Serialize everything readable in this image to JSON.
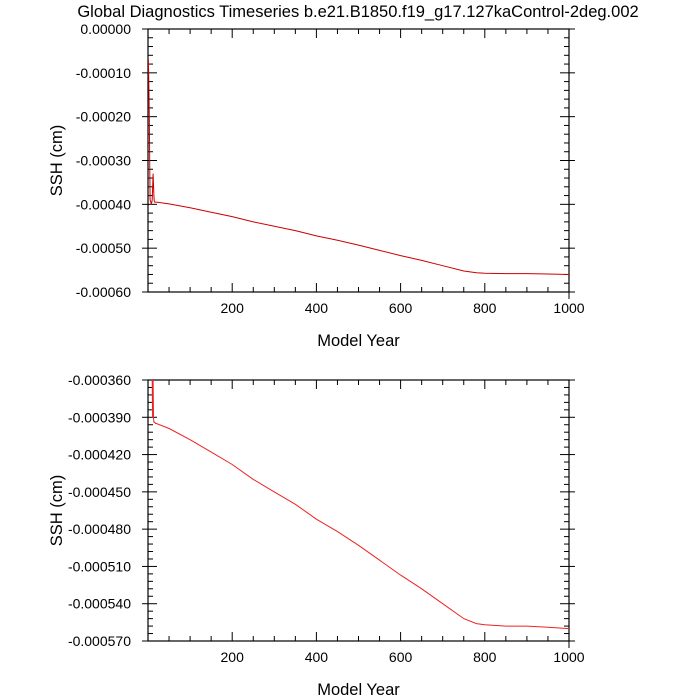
{
  "title": "Global Diagnostics Timeseries b.e21.B1850.f19_g17.127kaControl-2deg.002",
  "charts": [
    {
      "type": "line",
      "xlabel": "Model Year",
      "ylabel": "SSH (cm)",
      "xlim": [
        0,
        1000
      ],
      "ylim": [
        -0.0006,
        0.0
      ],
      "xticks": [
        200,
        400,
        600,
        800,
        1000
      ],
      "xtick_labels": [
        "200",
        "400",
        "600",
        "800",
        "1000"
      ],
      "yticks": [
        0.0,
        -0.0001,
        -0.0002,
        -0.0003,
        -0.0004,
        -0.0005,
        -0.0006
      ],
      "ytick_labels": [
        "0.00000",
        "-0.00010",
        "-0.00020",
        "-0.00030",
        "-0.00040",
        "-0.00050",
        "-0.00060"
      ],
      "series": [
        {
          "color": "#cc0000",
          "x": [
            1,
            2,
            3,
            4,
            5,
            8,
            10,
            12,
            14,
            15,
            16,
            18,
            20,
            50,
            100,
            150,
            200,
            250,
            300,
            350,
            400,
            450,
            500,
            550,
            600,
            650,
            700,
            750,
            780,
            800,
            850,
            900,
            950,
            1000
          ],
          "y": [
            -7e-05,
            -0.00012,
            -0.0002,
            -0.0003,
            -0.00039,
            -0.0004,
            -0.00039,
            -0.00033,
            -0.00038,
            -0.000394,
            -0.000395,
            -0.000395,
            -0.000395,
            -0.000399,
            -0.000408,
            -0.000418,
            -0.000428,
            -0.00044,
            -0.00045,
            -0.00046,
            -0.000472,
            -0.000482,
            -0.000493,
            -0.000505,
            -0.000517,
            -0.000528,
            -0.00054,
            -0.000552,
            -0.000556,
            -0.000557,
            -0.000558,
            -0.000558,
            -0.000559,
            -0.00056
          ]
        }
      ]
    },
    {
      "type": "line",
      "xlabel": "Model Year",
      "ylabel": "SSH (cm)",
      "xlim": [
        0,
        1000
      ],
      "ylim": [
        -0.00057,
        -0.00036
      ],
      "xticks": [
        200,
        400,
        600,
        800,
        1000
      ],
      "xtick_labels": [
        "200",
        "400",
        "600",
        "800",
        "1000"
      ],
      "yticks": [
        -0.00036,
        -0.00039,
        -0.00042,
        -0.00045,
        -0.00048,
        -0.00051,
        -0.00054,
        -0.00057
      ],
      "ytick_labels": [
        "-0.000360",
        "-0.000390",
        "-0.000420",
        "-0.000450",
        "-0.000480",
        "-0.000510",
        "-0.000540",
        "-0.000570"
      ],
      "series": [
        {
          "color": "#ee2222",
          "x": [
            10,
            11,
            12,
            13,
            14,
            15,
            16,
            18,
            20,
            50,
            100,
            150,
            200,
            250,
            300,
            350,
            400,
            450,
            500,
            550,
            600,
            650,
            700,
            750,
            780,
            800,
            850,
            900,
            950,
            1000
          ],
          "y": [
            -0.00036,
            -0.00039,
            -0.00036,
            -0.00039,
            -0.000394,
            -0.000394,
            -0.000394,
            -0.000395,
            -0.000395,
            -0.000399,
            -0.000408,
            -0.000418,
            -0.000428,
            -0.00044,
            -0.00045,
            -0.00046,
            -0.000472,
            -0.000482,
            -0.000493,
            -0.000505,
            -0.000517,
            -0.000528,
            -0.00054,
            -0.000552,
            -0.000556,
            -0.000557,
            -0.000558,
            -0.000558,
            -0.000559,
            -0.00056
          ]
        }
      ]
    }
  ]
}
